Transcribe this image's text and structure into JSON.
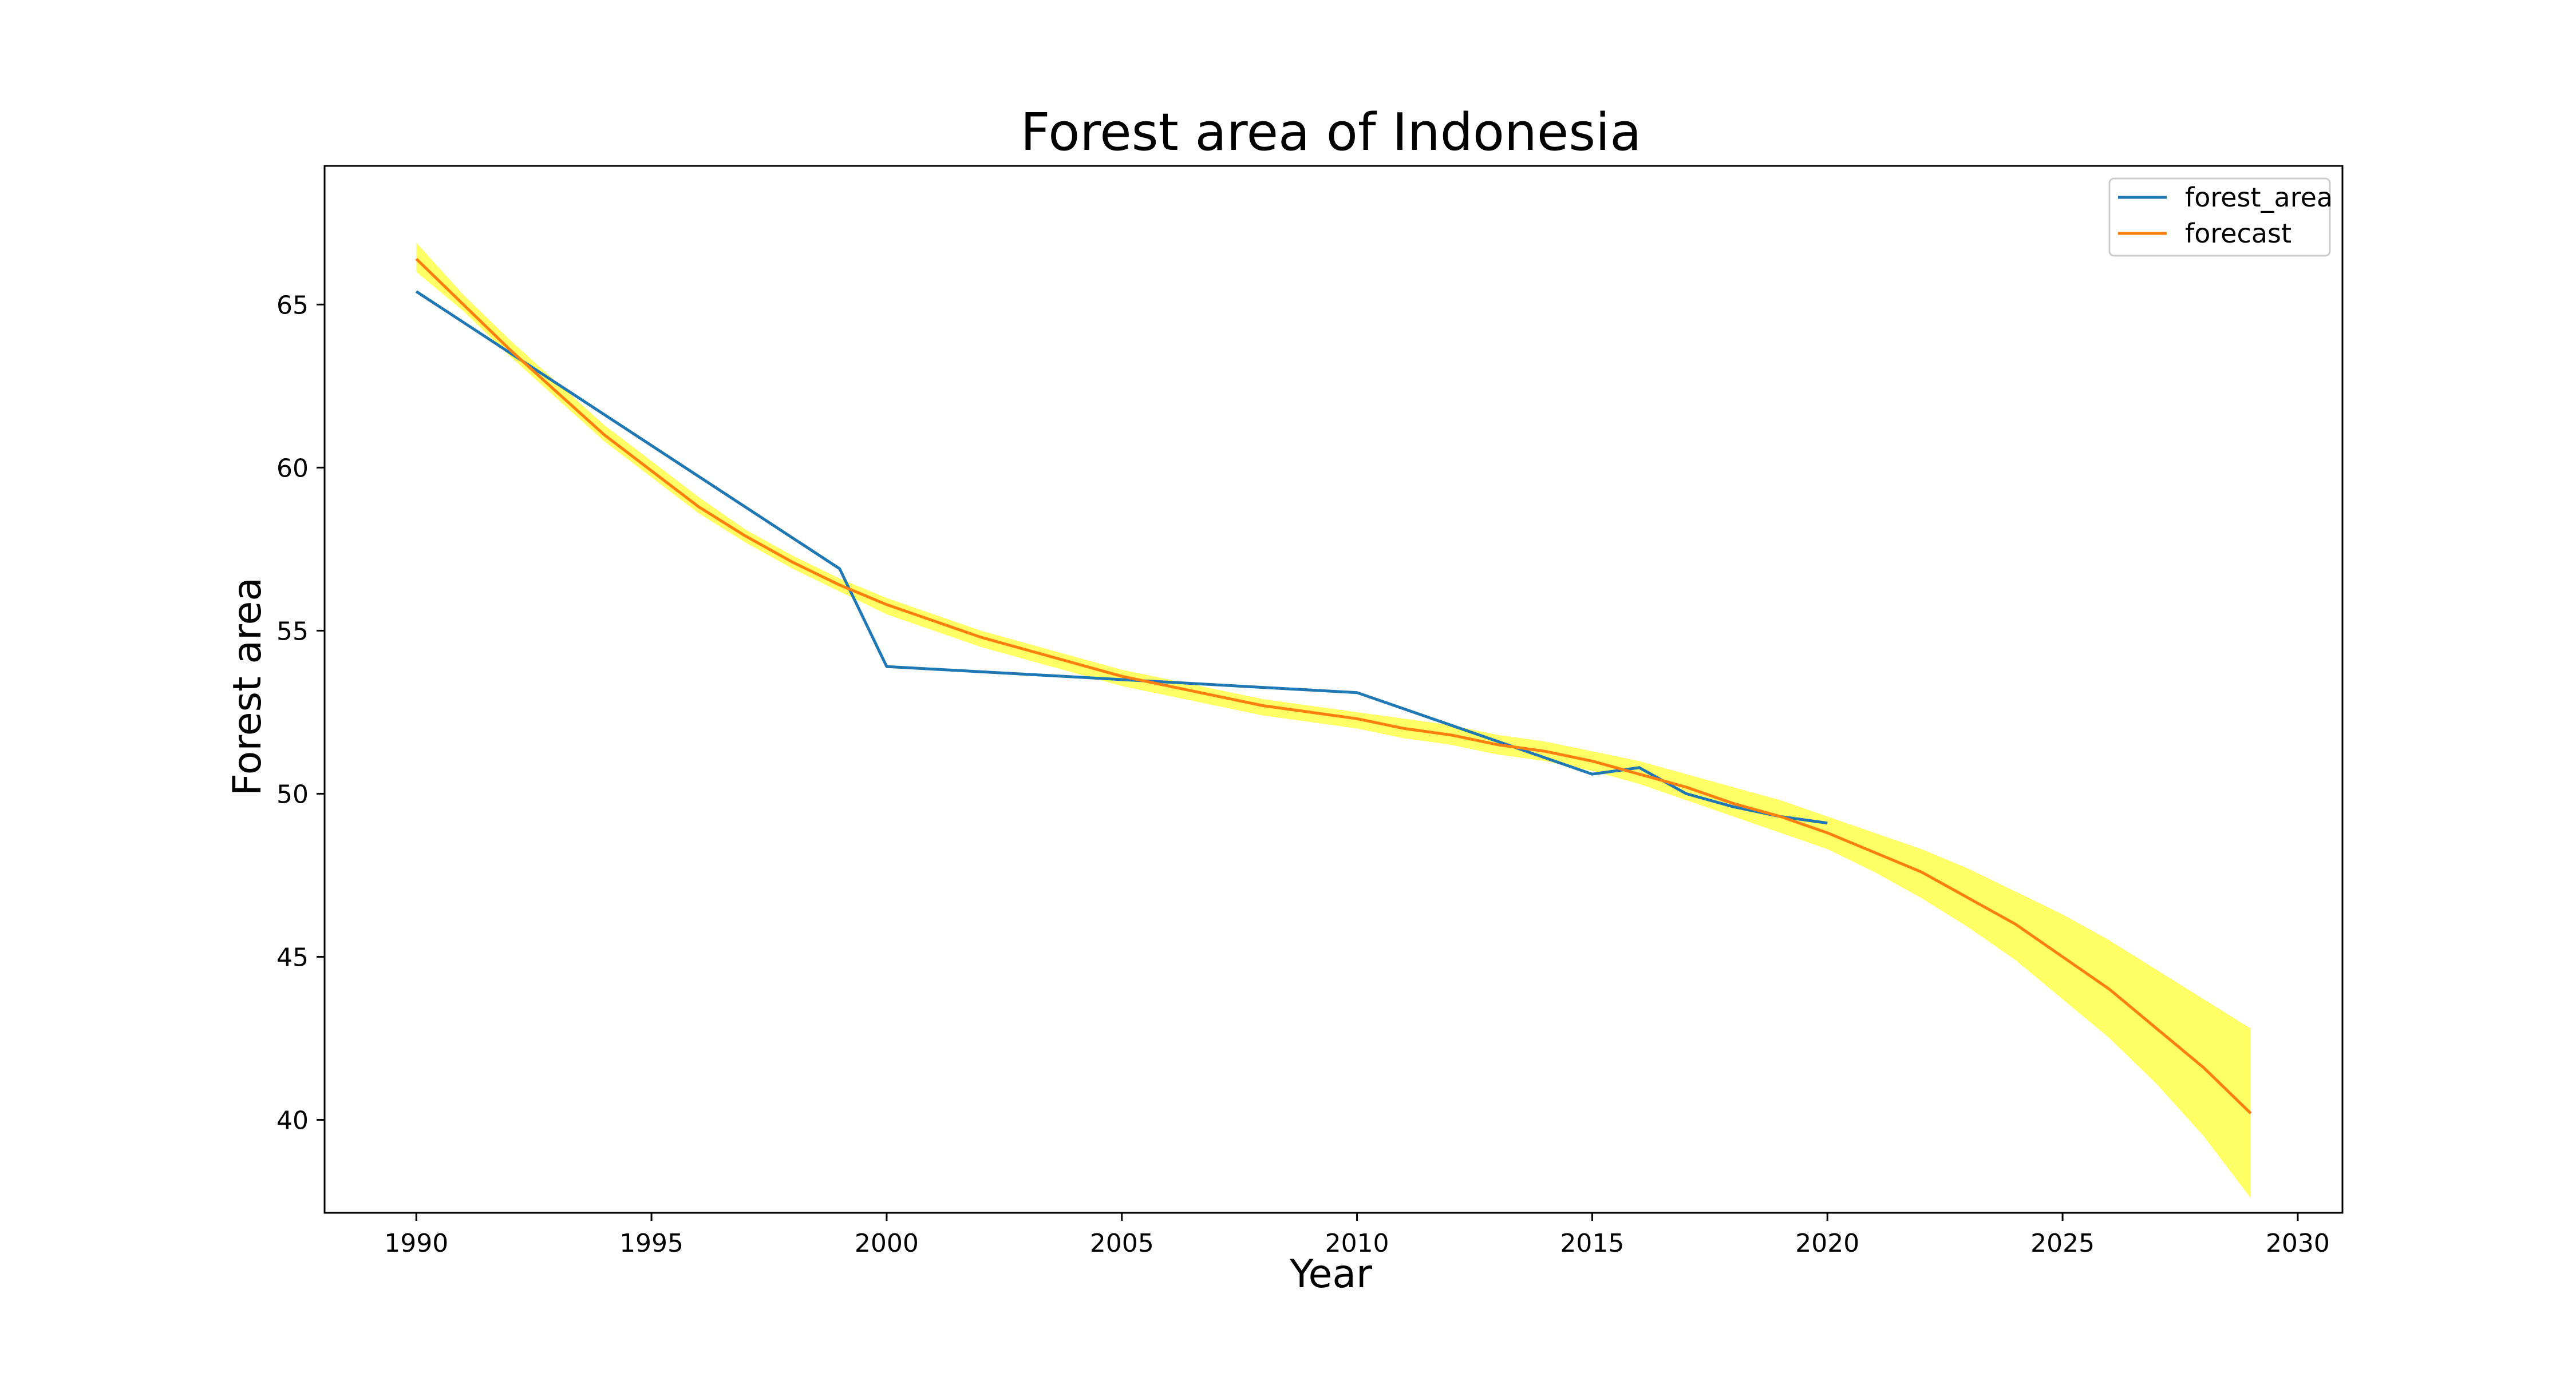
{
  "chart_data": {
    "type": "line",
    "title": "Forest area of Indonesia",
    "xlabel": "Year",
    "ylabel": "Forest area",
    "xlim": [
      1988.05,
      2030.95
    ],
    "ylim": [
      37.15,
      69.25
    ],
    "xticks": [
      1990,
      1995,
      2000,
      2005,
      2010,
      2015,
      2020,
      2025,
      2030
    ],
    "yticks": [
      40,
      45,
      50,
      55,
      60,
      65
    ],
    "grid": false,
    "legend_position": "top-right",
    "colors": {
      "forest_area": "#1f77b4",
      "forecast": "#ff7f0e",
      "band": "#ffff66"
    },
    "series": [
      {
        "name": "forest_area",
        "x": [
          1990,
          1999,
          2000,
          2010,
          2015,
          2016,
          2017,
          2018,
          2019,
          2020
        ],
        "y": [
          65.4,
          56.9,
          53.9,
          53.1,
          50.6,
          50.8,
          50.0,
          49.6,
          49.3,
          49.1
        ]
      },
      {
        "name": "forecast",
        "x": [
          1990,
          1991,
          1992,
          1993,
          1994,
          1995,
          1996,
          1997,
          1998,
          1999,
          2000,
          2001,
          2002,
          2003,
          2004,
          2005,
          2006,
          2007,
          2008,
          2009,
          2010,
          2011,
          2012,
          2013,
          2014,
          2015,
          2016,
          2017,
          2018,
          2019,
          2020,
          2021,
          2022,
          2023,
          2024,
          2025,
          2026,
          2027,
          2028,
          2029
        ],
        "y": [
          66.4,
          65.0,
          63.6,
          62.3,
          61.0,
          59.9,
          58.8,
          57.9,
          57.1,
          56.4,
          55.8,
          55.3,
          54.8,
          54.4,
          54.0,
          53.6,
          53.3,
          53.0,
          52.7,
          52.5,
          52.3,
          52.0,
          51.8,
          51.5,
          51.3,
          51.0,
          50.6,
          50.2,
          49.7,
          49.3,
          48.8,
          48.2,
          47.6,
          46.8,
          46.0,
          45.0,
          44.0,
          42.8,
          41.6,
          40.2
        ]
      }
    ],
    "confidence_band": {
      "x": [
        1990,
        1991,
        1992,
        1993,
        1994,
        1995,
        1996,
        1997,
        1998,
        1999,
        2000,
        2001,
        2002,
        2003,
        2004,
        2005,
        2006,
        2007,
        2008,
        2009,
        2010,
        2011,
        2012,
        2013,
        2014,
        2015,
        2016,
        2017,
        2018,
        2019,
        2020,
        2021,
        2022,
        2023,
        2024,
        2025,
        2026,
        2027,
        2028,
        2029
      ],
      "lower": [
        66.0,
        64.8,
        63.4,
        62.1,
        60.8,
        59.7,
        58.6,
        57.7,
        56.9,
        56.2,
        55.5,
        55.0,
        54.5,
        54.1,
        53.7,
        53.3,
        53.0,
        52.7,
        52.4,
        52.2,
        52.0,
        51.7,
        51.5,
        51.2,
        51.0,
        50.7,
        50.3,
        49.8,
        49.3,
        48.8,
        48.3,
        47.6,
        46.8,
        45.9,
        44.9,
        43.7,
        42.5,
        41.1,
        39.5,
        37.6
      ],
      "upper": [
        66.9,
        65.3,
        63.9,
        62.6,
        61.3,
        60.2,
        59.1,
        58.1,
        57.3,
        56.6,
        56.0,
        55.5,
        55.0,
        54.6,
        54.2,
        53.8,
        53.5,
        53.2,
        52.9,
        52.7,
        52.5,
        52.3,
        52.1,
        51.8,
        51.6,
        51.3,
        51.0,
        50.6,
        50.2,
        49.8,
        49.3,
        48.8,
        48.3,
        47.7,
        47.0,
        46.3,
        45.5,
        44.6,
        43.7,
        42.8
      ]
    }
  }
}
